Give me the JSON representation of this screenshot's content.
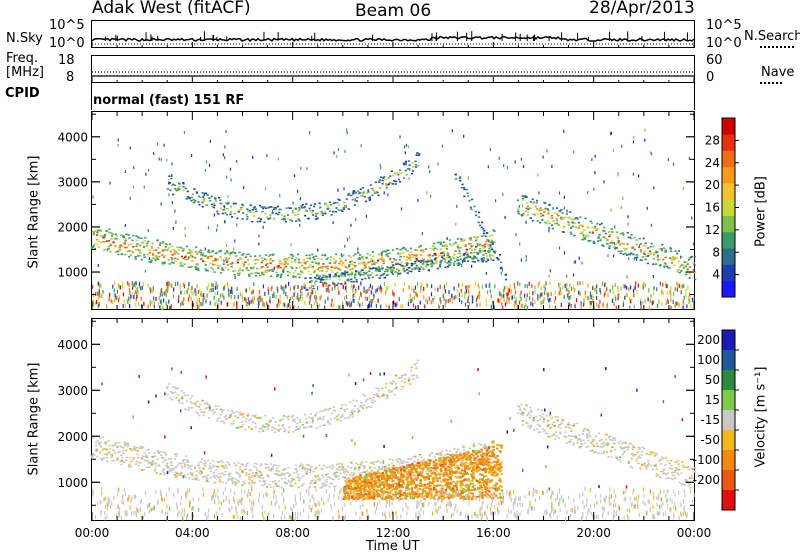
{
  "header": {
    "title": "Adak West (fitACF)",
    "beam": "Beam 06",
    "date": "28/Apr/2013"
  },
  "status_panels": {
    "nsky_label": "N.Sky",
    "nsky_ticks": [
      "10^5",
      "10^0"
    ],
    "nsearch_label": "N.Search",
    "nsearch_ticks": [
      "10^5",
      "10^0"
    ],
    "freq_label_1": "Freq.",
    "freq_label_2": "[MHz]",
    "freq_ticks": [
      "18",
      "8"
    ],
    "nave_label": "Nave",
    "nave_ticks": [
      "60",
      "0"
    ],
    "cpid_label": "CPID",
    "cpid_value": "normal (fast) 151 RF"
  },
  "chart_data": [
    {
      "type": "heatmap",
      "name": "power",
      "xlabel": "",
      "ylabel": "Slant Range [km]",
      "x_ticks": [
        "00:00",
        "04:00",
        "08:00",
        "12:00",
        "16:00",
        "20:00",
        "00:00"
      ],
      "x_range_hours": [
        0,
        24
      ],
      "y_ticks": [
        1000,
        2000,
        3000,
        4000
      ],
      "ylim": [
        180,
        4550
      ],
      "colorbar": {
        "label": "Power [dB]",
        "ticks": [
          4,
          8,
          12,
          16,
          20,
          24,
          28
        ],
        "range": [
          0,
          32
        ],
        "colors": [
          "#1a1aff",
          "#1c3fb0",
          "#2b6f8a",
          "#3c9a6b",
          "#7ec04a",
          "#c7d83a",
          "#f1c232",
          "#f79b1c",
          "#f26b15",
          "#e8320f",
          "#d00000"
        ]
      },
      "features": [
        {
          "desc": "main band",
          "t_start": 0,
          "t_end": 16,
          "range_start": 1800,
          "range_mid": 1150,
          "range_end": 1700,
          "power": "high"
        },
        {
          "desc": "upper band",
          "t_start": 3,
          "t_end": 13,
          "range_start": 3000,
          "range_mid": 2300,
          "range_end": 3500,
          "power": "medium"
        },
        {
          "desc": "post-16h band",
          "t_start": 17,
          "t_end": 24,
          "range_start": 2500,
          "range_end": 1100,
          "power": "high"
        },
        {
          "desc": "near-range clutter",
          "t_start": 0,
          "t_end": 24,
          "range_start": 250,
          "range_end": 700,
          "power": "mixed"
        }
      ]
    },
    {
      "type": "heatmap",
      "name": "velocity",
      "xlabel": "Time UT",
      "ylabel": "Slant Range [km]",
      "x_ticks": [
        "00:00",
        "04:00",
        "08:00",
        "12:00",
        "16:00",
        "20:00",
        "00:00"
      ],
      "x_range_hours": [
        0,
        24
      ],
      "y_ticks": [
        1000,
        2000,
        3000,
        4000
      ],
      "ylim": [
        180,
        4550
      ],
      "colorbar": {
        "label": "Velocity [m s⁻¹]",
        "ticks": [
          200,
          100,
          50,
          15,
          -15,
          -50,
          -100,
          -200
        ],
        "colors": [
          "#1a1ab4",
          "#1e5a9a",
          "#2e8a3c",
          "#7ec84a",
          "#c8c8c8",
          "#f5b91c",
          "#f28a10",
          "#ea5a10",
          "#e11010"
        ]
      },
      "features": [
        {
          "desc": "ground scatter (grey)",
          "t_start": 0,
          "t_end": 24,
          "velocity": "low"
        },
        {
          "desc": "negative velocity patch",
          "t_start": 10,
          "t_end": 16,
          "range": [
            650,
            1800
          ],
          "velocity": "-50 to -100"
        }
      ]
    }
  ]
}
